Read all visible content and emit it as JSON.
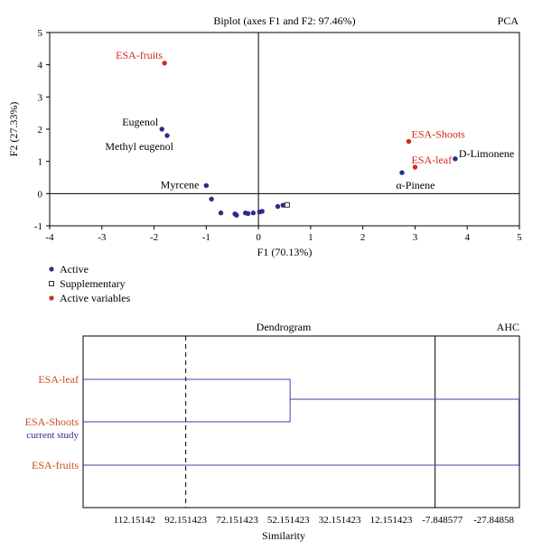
{
  "chart_data": [
    {
      "type": "scatter",
      "title": "Biplot (axes F1 and F2: 97.46%)",
      "tag": "PCA",
      "xlabel": "F1 (70.13%)",
      "ylabel": "F2 (27.33%)",
      "xlim": [
        -4,
        5
      ],
      "ylim": [
        -1,
        5
      ],
      "xticks": [
        "-4",
        "-3",
        "-2",
        "-1",
        "0",
        "1",
        "2",
        "3",
        "4",
        "5"
      ],
      "yticks": [
        "-1",
        "0",
        "1",
        "2",
        "3",
        "4",
        "5"
      ],
      "grid": false,
      "zero_lines": true,
      "legend": {
        "placement": "bottom-left",
        "items": [
          {
            "label": "Active",
            "marker": "filled-circle",
            "color": "#2b2b8c"
          },
          {
            "label": "Supplementary",
            "marker": "open-square",
            "color": "#333333"
          },
          {
            "label": "Active variables",
            "marker": "filled-circle",
            "color": "#d42a1c"
          }
        ]
      },
      "series": [
        {
          "name": "Active",
          "color": "#2b2b8c",
          "points": [
            {
              "x": -1.85,
              "y": 2.0,
              "label": "Eugenol"
            },
            {
              "x": -1.75,
              "y": 1.8,
              "label": "Methyl eugenol"
            },
            {
              "x": -1.0,
              "y": 0.25,
              "label": "Myrcene"
            },
            {
              "x": 3.77,
              "y": 1.08,
              "label": "D-Limonene"
            },
            {
              "x": 2.75,
              "y": 0.65,
              "label": "α-Pinene"
            },
            {
              "x": -0.9,
              "y": -0.17,
              "label": ""
            },
            {
              "x": -0.72,
              "y": -0.6,
              "label": ""
            },
            {
              "x": -0.45,
              "y": -0.63,
              "label": ""
            },
            {
              "x": -0.42,
              "y": -0.67,
              "label": ""
            },
            {
              "x": -0.25,
              "y": -0.6,
              "label": ""
            },
            {
              "x": -0.2,
              "y": -0.62,
              "label": ""
            },
            {
              "x": -0.1,
              "y": -0.6,
              "label": ""
            },
            {
              "x": 0.02,
              "y": -0.57,
              "label": ""
            },
            {
              "x": 0.07,
              "y": -0.55,
              "label": ""
            },
            {
              "x": 0.37,
              "y": -0.4,
              "label": ""
            },
            {
              "x": 0.47,
              "y": -0.36,
              "label": ""
            }
          ]
        },
        {
          "name": "Supplementary",
          "color": "#333333",
          "points": [
            {
              "x": 0.55,
              "y": -0.35,
              "label": ""
            }
          ]
        },
        {
          "name": "Active variables",
          "color": "#d42a1c",
          "points": [
            {
              "x": -1.8,
              "y": 4.05,
              "label": "ESA-fruits"
            },
            {
              "x": 2.88,
              "y": 1.62,
              "label": "ESA-Shoots"
            },
            {
              "x": 3.0,
              "y": 0.82,
              "label": "ESA-leaf"
            }
          ]
        }
      ]
    },
    {
      "type": "dendrogram",
      "title": "Dendrogram",
      "tag": "AHC",
      "xlabel": "Similarity",
      "xlim": [
        132.15142,
        -37.84858
      ],
      "xticks": [
        {
          "value": 112.15142,
          "label": "112.15142"
        },
        {
          "value": 92.151423,
          "label": "92.151423"
        },
        {
          "value": 72.151423,
          "label": "72.151423"
        },
        {
          "value": 52.151423,
          "label": "52.151423"
        },
        {
          "value": 32.151423,
          "label": "32.151423"
        },
        {
          "value": 12.151423,
          "label": "12.151423"
        },
        {
          "value": -7.848577,
          "label": "-7.848577"
        },
        {
          "value": -27.84858,
          "label": "-27.84858"
        }
      ],
      "truncation_line": 92.151423,
      "reference_line": -5.0,
      "leaves": [
        {
          "label": "ESA-leaf",
          "color": "#c8501e"
        },
        {
          "label": "ESA-Shoots",
          "color": "#c8501e",
          "sublabel": "current study",
          "sublabel_color": "#2b2b8c"
        },
        {
          "label": "ESA-fruits",
          "color": "#c8501e"
        }
      ],
      "merges": [
        {
          "leaves": [
            "ESA-leaf",
            "ESA-Shoots"
          ],
          "similarity": 51.5
        },
        {
          "leaves": [
            "ESA-leaf",
            "ESA-Shoots",
            "ESA-fruits"
          ],
          "similarity": -37.84858
        }
      ],
      "line_color": "#4040a8"
    }
  ]
}
